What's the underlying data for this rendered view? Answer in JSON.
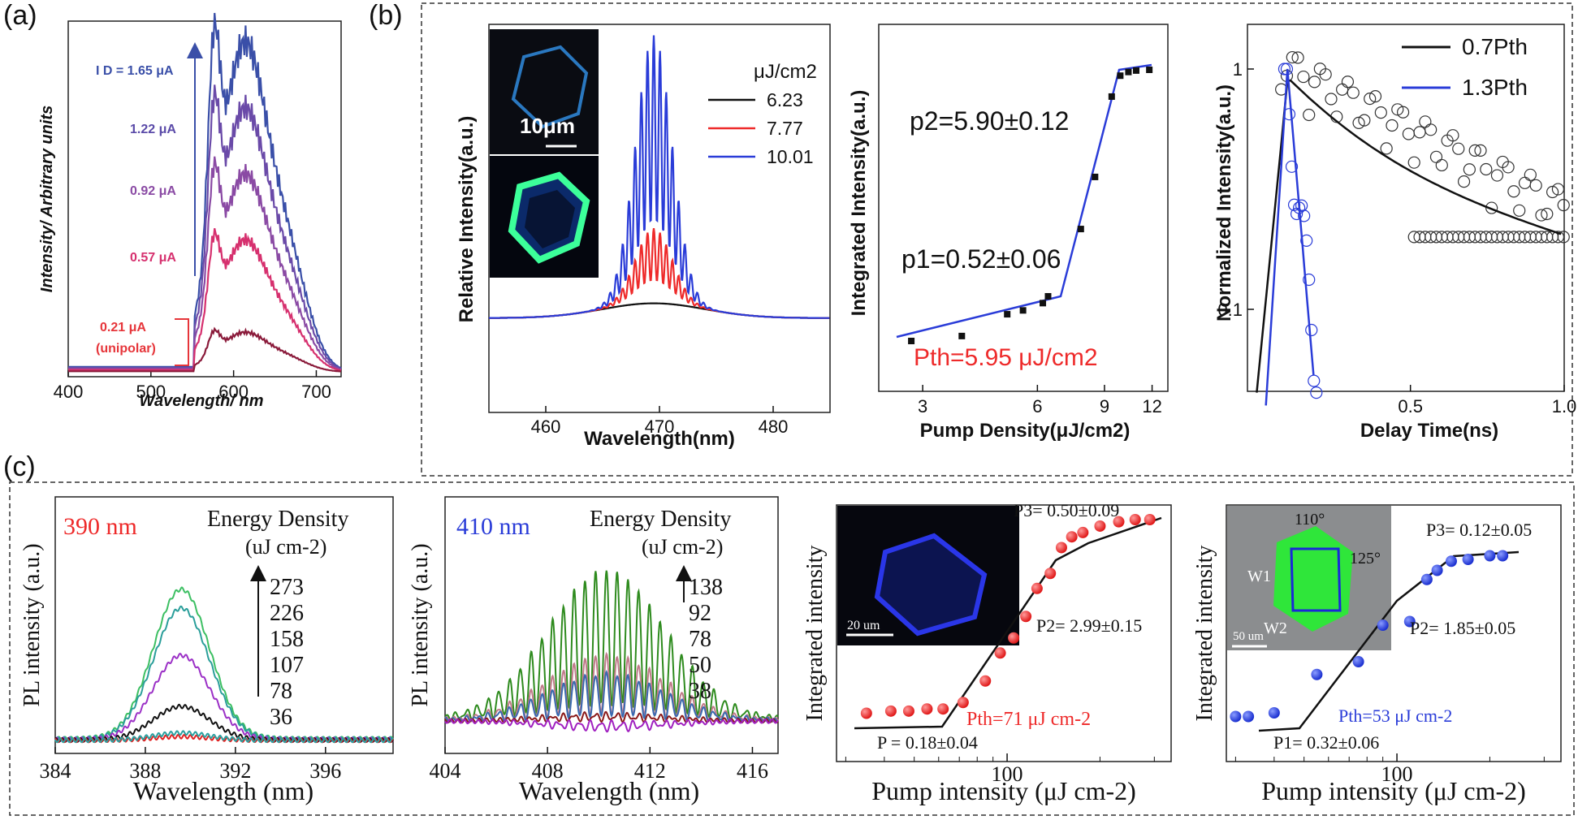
{
  "panel_labels": [
    "(a)",
    "(b)",
    "(c)"
  ],
  "colors": {
    "blue": "#2a3cd8",
    "red": "#ee2a2a",
    "black": "#111111",
    "green": "#3cbf62",
    "teal": "#2a9e9a",
    "purple": "#9b30c6",
    "a_top": "#3a4fa8",
    "a_mid": "#8a4aa4",
    "a_low": "#d6306e"
  },
  "chart_data": [
    {
      "id": "a",
      "type": "line",
      "xlabel": "Wavelength/ nm",
      "ylabel": "Intensity/ Arbitrary units",
      "xlim": [
        400,
        730
      ],
      "xticks": [
        "400",
        "500",
        "600",
        "700"
      ],
      "annotations": [
        "I D = 1.65 μA",
        "1.22 μA",
        "0.92 μA",
        "0.57 μA",
        "0.21 μA",
        "(unipolar)"
      ],
      "series": [
        {
          "value": 1.65,
          "peak_x": [
            576,
            616
          ],
          "scale": 1.0
        },
        {
          "value": 1.22,
          "peak_x": [
            576,
            616
          ],
          "scale": 0.8
        },
        {
          "value": 0.92,
          "peak_x": [
            576,
            616
          ],
          "scale": 0.6
        },
        {
          "value": 0.57,
          "peak_x": [
            576,
            616
          ],
          "scale": 0.4
        },
        {
          "value": 0.21,
          "peak_x": [
            576,
            616
          ],
          "scale": 0.12
        }
      ]
    },
    {
      "id": "b1",
      "type": "line",
      "xlabel": "Wavelength(nm)",
      "ylabel": "Relative Intensity(a.u.)",
      "xlim": [
        455,
        485
      ],
      "xticks": [
        "460",
        "470",
        "480"
      ],
      "legend_title": "μJ/cm2",
      "inset_scale": "10μm",
      "series": [
        {
          "name": "6.23",
          "peak_rel": 0.07
        },
        {
          "name": "7.77",
          "peak_rel": 0.28
        },
        {
          "name": "10.01",
          "peak_rel": 1.0
        }
      ]
    },
    {
      "id": "b2",
      "type": "scatter",
      "xlabel": "Pump Density(μJ/cm2)",
      "ylabel": "Integrated Intensity(a.u.)",
      "xticks": [
        "3",
        "6",
        "9",
        "12"
      ],
      "annotations": [
        "p2=5.90±0.12",
        "p1=0.52±0.06",
        "Pth=5.95 μJ/cm2"
      ],
      "x": [
        2.8,
        3.8,
        5.0,
        5.5,
        6.2,
        6.4,
        7.8,
        8.5,
        9.4,
        9.9,
        10.4,
        10.9,
        11.8
      ],
      "y": [
        1.0,
        1.05,
        1.3,
        1.35,
        1.45,
        1.55,
        3.0,
        5.0,
        11.0,
        13.5,
        14.0,
        14.2,
        14.3
      ]
    },
    {
      "id": "b3",
      "type": "scatter",
      "xlabel": "Delay Time(ns)",
      "ylabel": "Normalized Intensity(a.u.)",
      "yscale": "log",
      "xticks": [
        "0.5",
        "1.0"
      ],
      "yticks": [
        "1",
        "0.1"
      ],
      "legend": [
        "0.7Pth",
        "1.3Pth"
      ]
    },
    {
      "id": "c1",
      "type": "line",
      "title": "390 nm",
      "legend_title": [
        "Energy Density",
        "(uJ cm-2)"
      ],
      "xlabel": "Wavelength (nm)",
      "ylabel": "PL intensity (a.u.)",
      "xlim": [
        384,
        399
      ],
      "xticks": [
        "384",
        "388",
        "392",
        "396"
      ],
      "levels": [
        "273",
        "226",
        "158",
        "107",
        "78",
        "36"
      ]
    },
    {
      "id": "c2",
      "type": "line",
      "title": "410 nm",
      "legend_title": [
        "Energy Density",
        "(uJ cm-2)"
      ],
      "xlabel": "Wavelength (nm)",
      "ylabel": "PL intensity (a.u.)",
      "xlim": [
        404,
        417
      ],
      "xticks": [
        "404",
        "408",
        "412",
        "416"
      ],
      "levels": [
        "138",
        "92",
        "78",
        "50",
        "38"
      ]
    },
    {
      "id": "c3",
      "type": "scatter",
      "xlabel": "Pump intensity (μJ cm-2)",
      "ylabel": "Integrated intensity",
      "xticks": [
        "100"
      ],
      "inset_scale": "20 um",
      "annotations": [
        "P3= 0.50±0.09",
        "P2= 2.99±0.15",
        "Pth=71 μJ cm-2",
        "P = 0.18±0.04"
      ],
      "x": [
        35,
        42,
        48,
        55,
        62,
        72,
        85,
        95,
        105,
        115,
        125,
        138,
        150,
        162,
        176,
        200,
        230,
        260,
        290
      ],
      "y": [
        0.1,
        0.11,
        0.11,
        0.12,
        0.12,
        0.15,
        0.25,
        0.38,
        0.45,
        0.55,
        0.68,
        0.75,
        0.87,
        0.92,
        0.94,
        0.97,
        0.99,
        1.0,
        1.0
      ]
    },
    {
      "id": "c4",
      "type": "scatter",
      "xlabel": "Pump intensity (μJ cm-2)",
      "ylabel": "Integrated intensity",
      "xticks": [
        "100"
      ],
      "inset_scale": "50 um",
      "inset_labels": [
        "110°",
        "125°",
        "W1",
        "W2"
      ],
      "annotations": [
        "P3= 0.12±0.05",
        "P2= 1.85±0.05",
        "Pth=53 μJ cm-2",
        "P1= 0.32±0.06"
      ],
      "x": [
        30,
        33,
        40,
        55,
        75,
        90,
        110,
        125,
        135,
        150,
        170,
        200,
        220
      ],
      "y": [
        0.1,
        0.1,
        0.12,
        0.33,
        0.4,
        0.6,
        0.62,
        0.85,
        0.9,
        0.95,
        0.96,
        0.98,
        0.98
      ]
    }
  ]
}
